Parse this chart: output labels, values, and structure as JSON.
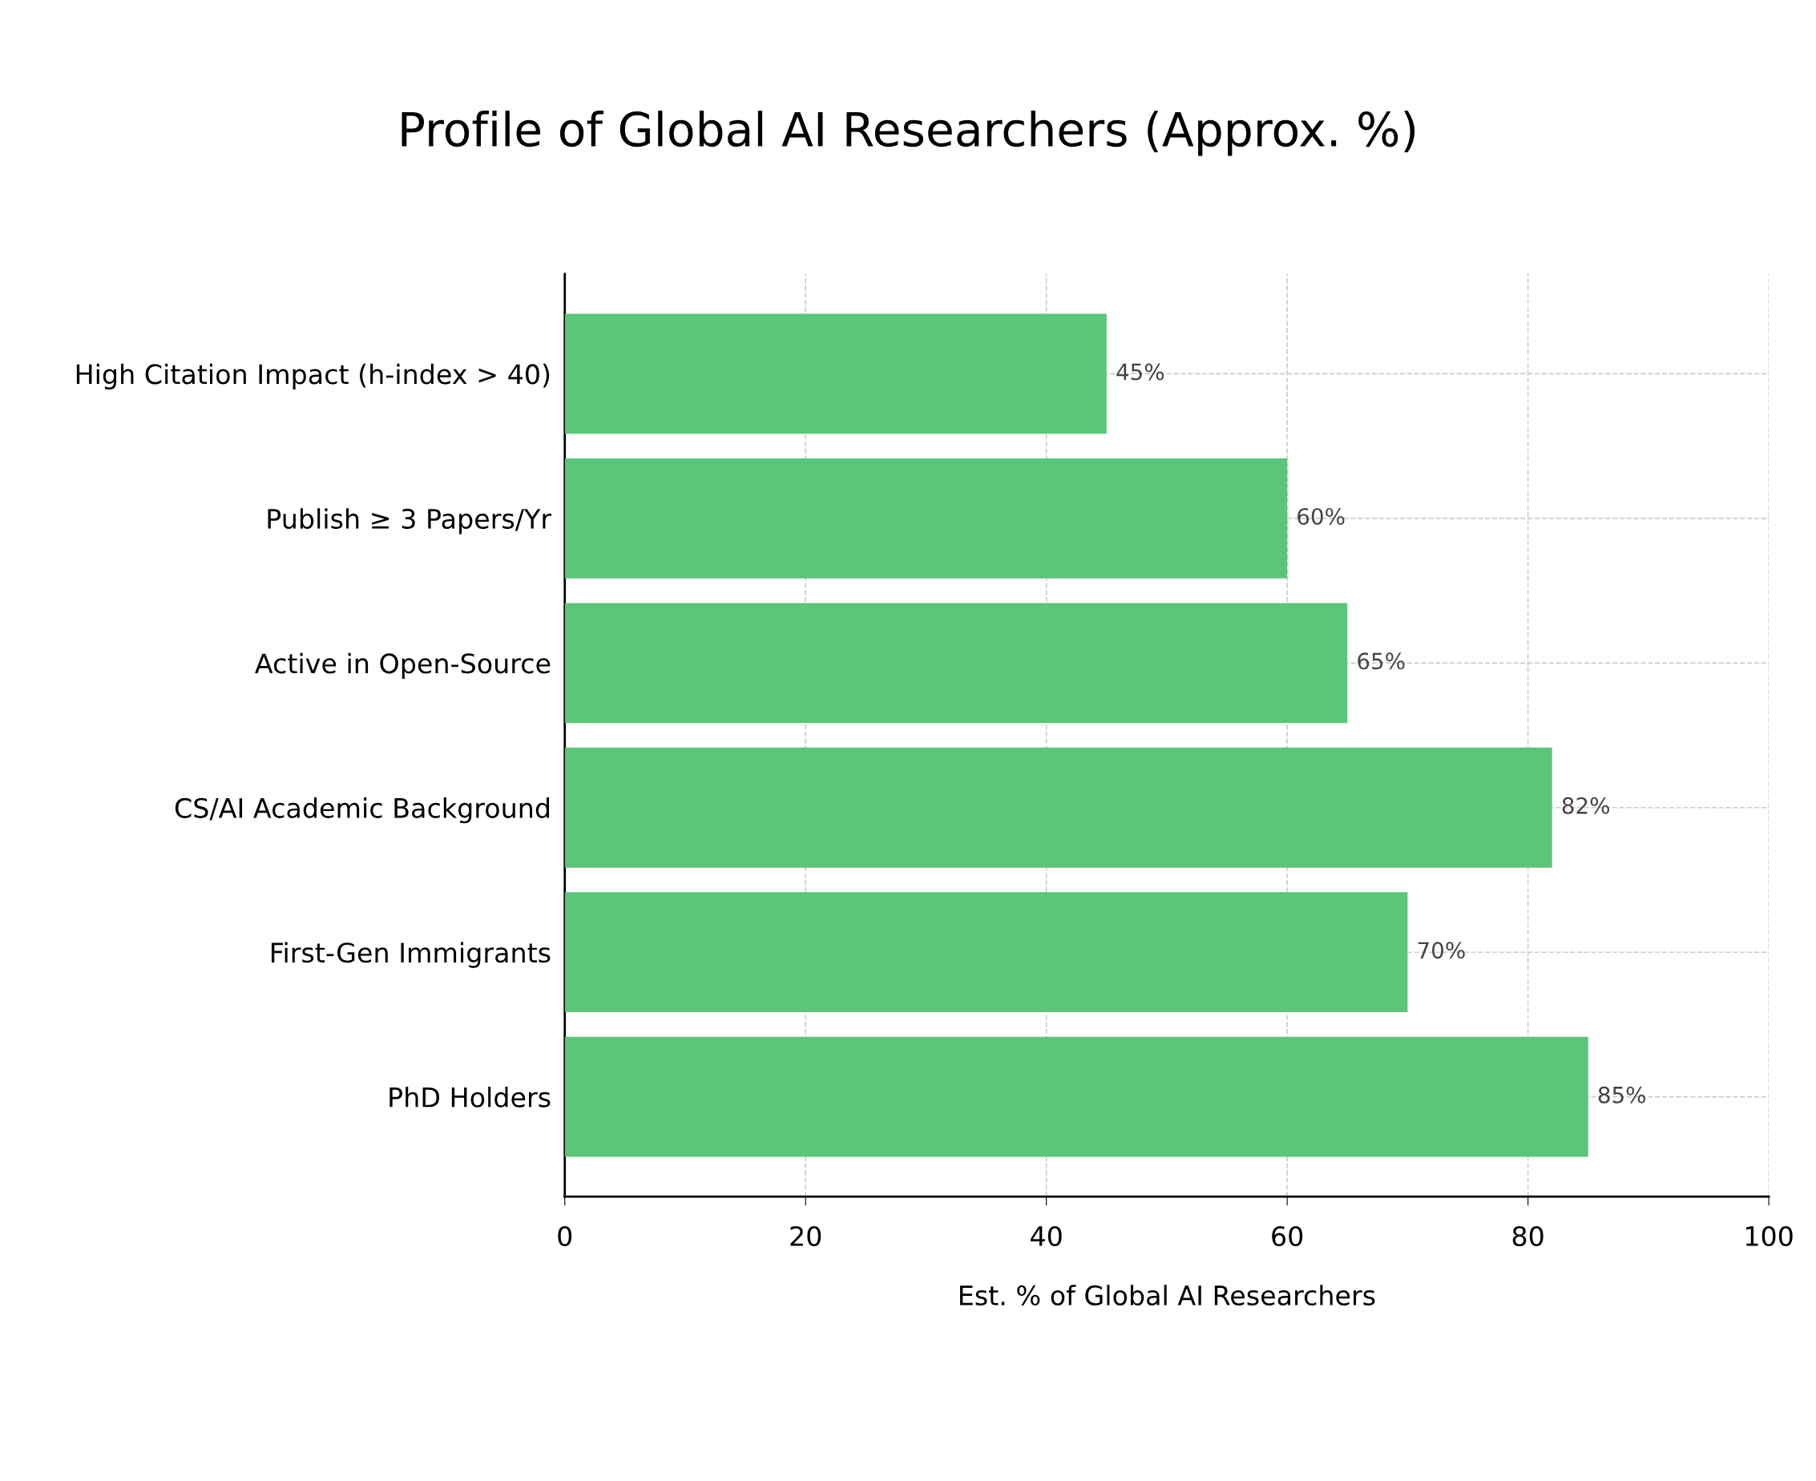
{
  "chart_data": {
    "type": "bar",
    "orientation": "horizontal",
    "title": "Profile of Global AI Researchers (Approx. %)",
    "xlabel": "Est. % of Global AI Researchers",
    "categories": [
      "High Citation Impact (h-index > 40)",
      "Publish ≥ 3 Papers/Yr",
      "Active in Open-Source",
      "CS/AI Academic Background",
      "First-Gen Immigrants",
      "PhD Holders"
    ],
    "values": [
      45,
      60,
      65,
      82,
      70,
      85
    ],
    "value_labels": [
      "45%",
      "60%",
      "65%",
      "82%",
      "70%",
      "85%"
    ],
    "color": "#5bc57a",
    "xlim": [
      0,
      100
    ],
    "xticks": [
      0,
      20,
      40,
      60,
      80,
      100
    ],
    "grid": true
  }
}
